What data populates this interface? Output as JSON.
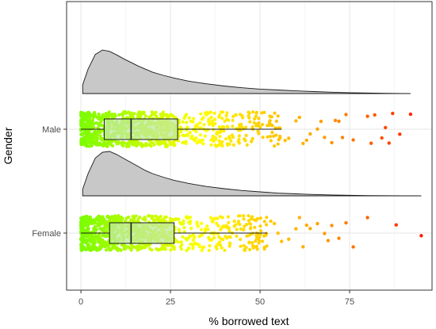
{
  "chart_data": {
    "type": "raincloud",
    "title": "",
    "xlabel": "% borrowed text",
    "ylabel": "Gender",
    "xlim": [
      -4,
      98
    ],
    "x_ticks": [
      0,
      25,
      50,
      75
    ],
    "grid": true,
    "legend": "none",
    "colors": {
      "density_fill": "#c8c8c8",
      "density_stroke": "#1a1a1a",
      "box_fill": "#bfe8a0",
      "box_stroke": "#1a1a1a",
      "grid": "#e6e6e6",
      "panel_border": "#333333",
      "gradient": [
        "#7cfc00",
        "#ffff00",
        "#ffa500",
        "#ff0000"
      ]
    },
    "groups": [
      {
        "name": "Male",
        "box": {
          "q1": 6.5,
          "median": 14,
          "q3": 27,
          "whisker_low": 0,
          "whisker_high": 56
        },
        "density": {
          "x": [
            0.5,
            2,
            4,
            6,
            8,
            10,
            12,
            14,
            16,
            18,
            20,
            23,
            26,
            30,
            35,
            40,
            45,
            50,
            55,
            60,
            65,
            70,
            75,
            80,
            85,
            92
          ],
          "y": [
            0.2,
            0.55,
            0.88,
            0.98,
            0.95,
            0.87,
            0.78,
            0.7,
            0.62,
            0.55,
            0.48,
            0.41,
            0.35,
            0.28,
            0.22,
            0.17,
            0.13,
            0.1,
            0.08,
            0.06,
            0.045,
            0.03,
            0.02,
            0.012,
            0.006,
            0.0
          ]
        },
        "outliers": [
          57,
          58,
          60,
          61,
          62,
          63,
          64,
          66,
          67,
          68,
          70,
          71,
          72,
          73,
          74,
          76,
          80,
          81,
          82,
          84,
          85,
          86,
          87,
          89,
          92
        ]
      },
      {
        "name": "Female",
        "box": {
          "q1": 8,
          "median": 14,
          "q3": 26,
          "whisker_low": 0,
          "whisker_high": 52
        },
        "density": {
          "x": [
            0.5,
            2,
            4,
            6,
            8,
            10,
            12,
            14,
            16,
            18,
            20,
            23,
            26,
            30,
            35,
            40,
            45,
            50,
            55,
            60,
            65,
            70,
            75,
            80,
            85,
            95
          ],
          "y": [
            0.15,
            0.5,
            0.85,
            0.98,
            1.0,
            0.93,
            0.84,
            0.75,
            0.66,
            0.57,
            0.5,
            0.42,
            0.35,
            0.28,
            0.21,
            0.16,
            0.12,
            0.09,
            0.06,
            0.045,
            0.03,
            0.02,
            0.012,
            0.006,
            0.003,
            0.0
          ]
        },
        "outliers": [
          53,
          54,
          55,
          56,
          58,
          60,
          61,
          62,
          63,
          64,
          66,
          68,
          69,
          70,
          72,
          74,
          76,
          80,
          88,
          95
        ]
      }
    ]
  }
}
